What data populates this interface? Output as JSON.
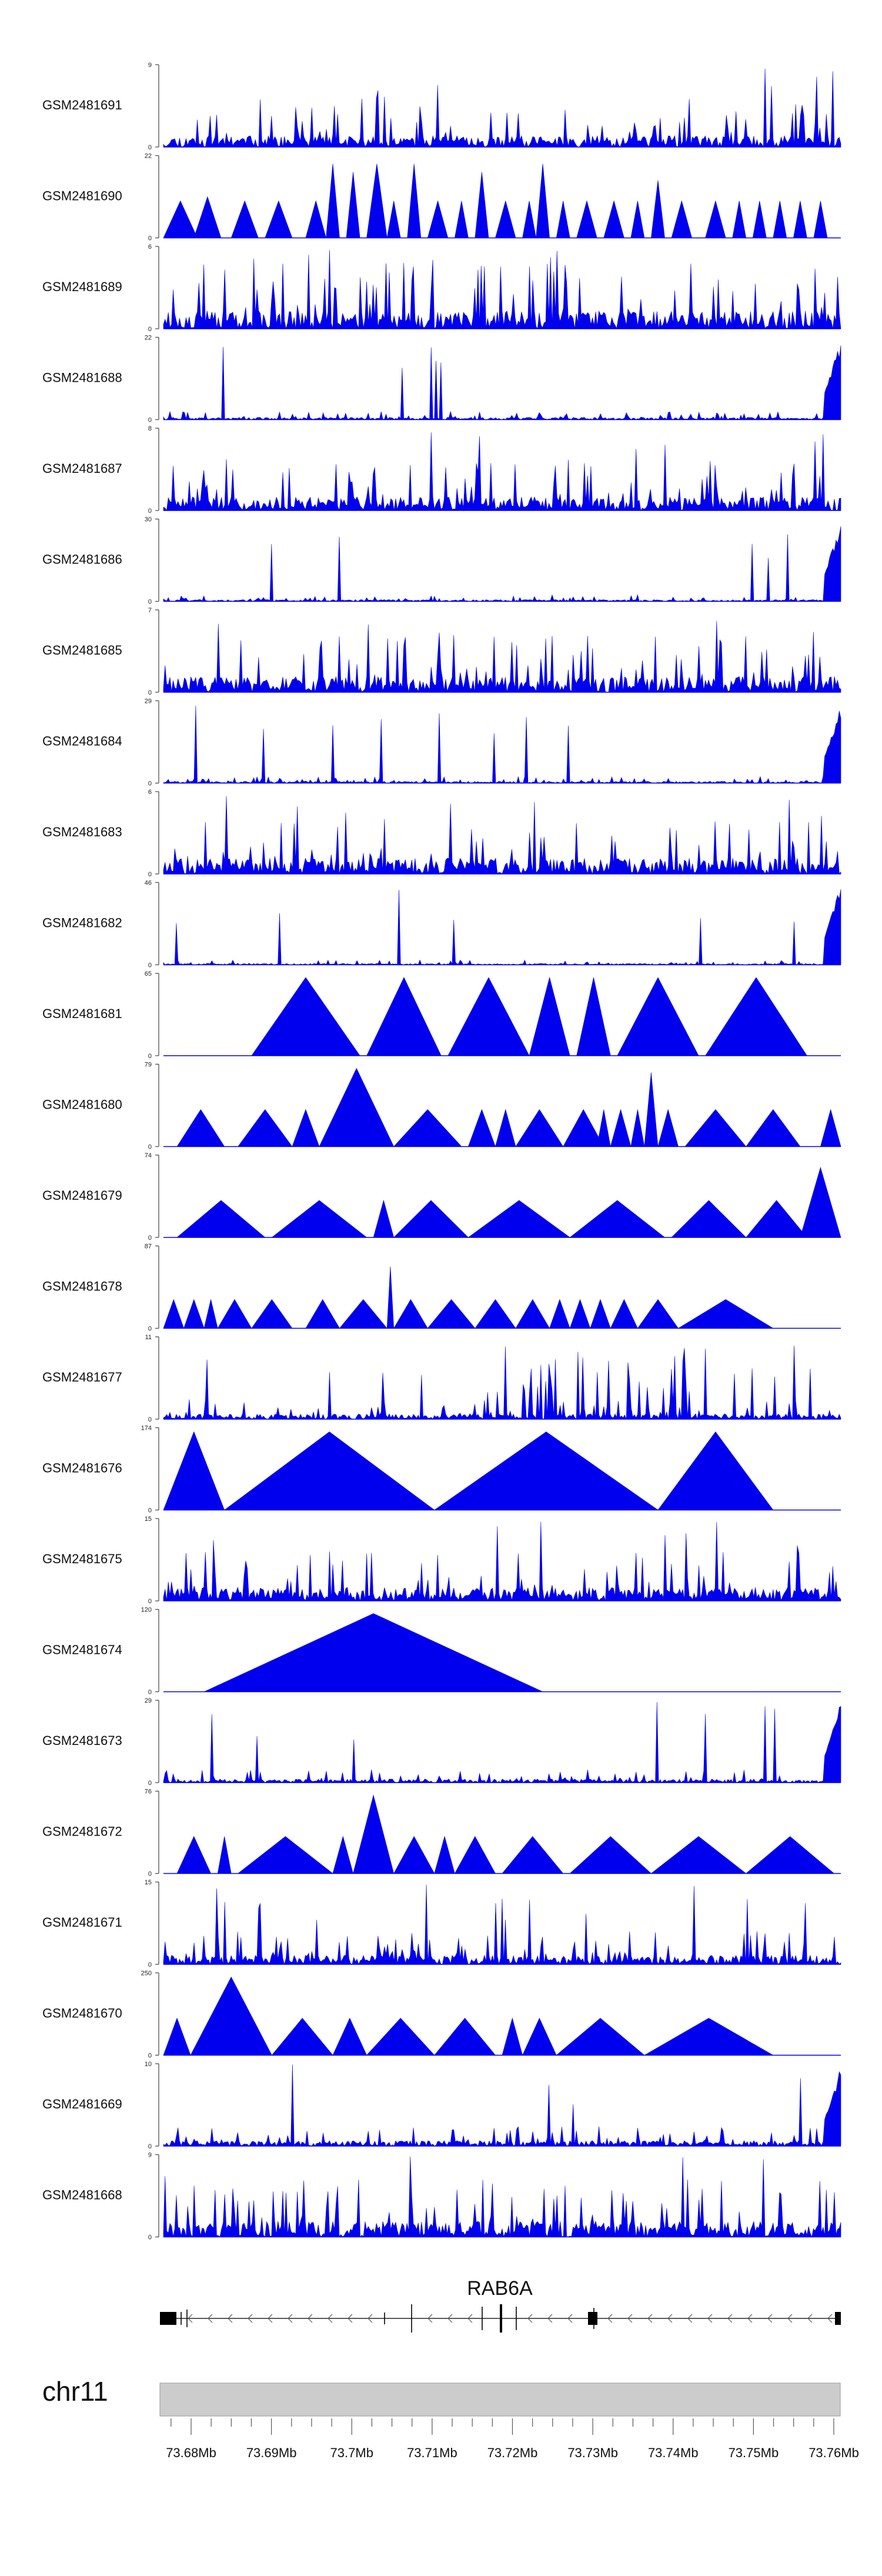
{
  "chart_data": {
    "type": "area",
    "description_axis": "genomic coverage tracks",
    "series_color": "#0000ee",
    "tracks": [
      {
        "label": "GSM2481691",
        "ymax": 9,
        "ymin": 0,
        "pattern": "noise",
        "seed": 11,
        "level": 0.25
      },
      {
        "label": "GSM2481690",
        "ymax": 22,
        "ymin": 0,
        "pattern": "triangles",
        "peaks": [
          [
            0.0,
            0.05,
            0.45
          ],
          [
            0.045,
            0.085,
            0.5
          ],
          [
            0.1,
            0.14,
            0.45
          ],
          [
            0.15,
            0.19,
            0.45
          ],
          [
            0.21,
            0.24,
            0.45
          ],
          [
            0.24,
            0.26,
            0.9
          ],
          [
            0.27,
            0.29,
            0.8
          ],
          [
            0.3,
            0.33,
            0.9
          ],
          [
            0.33,
            0.35,
            0.45
          ],
          [
            0.36,
            0.38,
            0.9
          ],
          [
            0.39,
            0.42,
            0.45
          ],
          [
            0.43,
            0.45,
            0.45
          ],
          [
            0.46,
            0.48,
            0.8
          ],
          [
            0.49,
            0.52,
            0.45
          ],
          [
            0.53,
            0.55,
            0.45
          ],
          [
            0.55,
            0.57,
            0.9
          ],
          [
            0.58,
            0.6,
            0.45
          ],
          [
            0.61,
            0.64,
            0.45
          ],
          [
            0.65,
            0.68,
            0.45
          ],
          [
            0.69,
            0.71,
            0.45
          ],
          [
            0.72,
            0.74,
            0.7
          ],
          [
            0.75,
            0.78,
            0.45
          ],
          [
            0.8,
            0.83,
            0.45
          ],
          [
            0.84,
            0.86,
            0.45
          ],
          [
            0.87,
            0.89,
            0.45
          ],
          [
            0.9,
            0.92,
            0.45
          ],
          [
            0.93,
            0.95,
            0.45
          ],
          [
            0.96,
            0.98,
            0.45
          ]
        ]
      },
      {
        "label": "GSM2481689",
        "ymax": 6,
        "ymin": 0,
        "pattern": "noise",
        "seed": 23,
        "level": 0.4
      },
      {
        "label": "GSM2481688",
        "ymax": 22,
        "ymin": 0,
        "pattern": "noise_endspike",
        "seed": 31,
        "level": 0.05
      },
      {
        "label": "GSM2481687",
        "ymax": 8,
        "ymin": 0,
        "pattern": "noise",
        "seed": 41,
        "level": 0.3
      },
      {
        "label": "GSM2481686",
        "ymax": 30,
        "ymin": 0,
        "pattern": "noise_endspike",
        "seed": 53,
        "level": 0.04
      },
      {
        "label": "GSM2481685",
        "ymax": 7,
        "ymin": 0,
        "pattern": "noise",
        "seed": 61,
        "level": 0.35
      },
      {
        "label": "GSM2481684",
        "ymax": 29,
        "ymin": 0,
        "pattern": "noise_endspike",
        "seed": 71,
        "level": 0.04
      },
      {
        "label": "GSM2481683",
        "ymax": 6,
        "ymin": 0,
        "pattern": "noise",
        "seed": 83,
        "level": 0.35
      },
      {
        "label": "GSM2481682",
        "ymax": 46,
        "ymin": 0,
        "pattern": "noise_endspike",
        "seed": 97,
        "level": 0.03
      },
      {
        "label": "GSM2481681",
        "ymax": 65,
        "ymin": 0,
        "pattern": "triangles",
        "peaks": [
          [
            0.13,
            0.29,
            0.95
          ],
          [
            0.3,
            0.41,
            0.95
          ],
          [
            0.42,
            0.54,
            0.95
          ],
          [
            0.54,
            0.6,
            0.95
          ],
          [
            0.61,
            0.66,
            0.95
          ],
          [
            0.67,
            0.79,
            0.95
          ],
          [
            0.8,
            0.95,
            0.95
          ]
        ]
      },
      {
        "label": "GSM2481680",
        "ymax": 79,
        "ymin": 0,
        "pattern": "triangles",
        "peaks": [
          [
            0.02,
            0.09,
            0.45
          ],
          [
            0.11,
            0.19,
            0.45
          ],
          [
            0.19,
            0.23,
            0.45
          ],
          [
            0.23,
            0.34,
            0.95
          ],
          [
            0.34,
            0.44,
            0.45
          ],
          [
            0.45,
            0.49,
            0.45
          ],
          [
            0.49,
            0.52,
            0.45
          ],
          [
            0.52,
            0.59,
            0.45
          ],
          [
            0.59,
            0.65,
            0.45
          ],
          [
            0.64,
            0.66,
            0.45
          ],
          [
            0.66,
            0.69,
            0.45
          ],
          [
            0.69,
            0.71,
            0.45
          ],
          [
            0.71,
            0.73,
            0.9
          ],
          [
            0.73,
            0.76,
            0.45
          ],
          [
            0.77,
            0.86,
            0.45
          ],
          [
            0.86,
            0.94,
            0.45
          ],
          [
            0.97,
            1.0,
            0.45
          ]
        ]
      },
      {
        "label": "GSM2481679",
        "ymax": 74,
        "ymin": 0,
        "pattern": "triangles",
        "peaks": [
          [
            0.02,
            0.15,
            0.45
          ],
          [
            0.16,
            0.3,
            0.45
          ],
          [
            0.31,
            0.34,
            0.45
          ],
          [
            0.34,
            0.45,
            0.45
          ],
          [
            0.45,
            0.6,
            0.45
          ],
          [
            0.6,
            0.74,
            0.45
          ],
          [
            0.75,
            0.86,
            0.45
          ],
          [
            0.86,
            0.95,
            0.45
          ],
          [
            0.94,
            1.0,
            0.85
          ]
        ]
      },
      {
        "label": "GSM2481678",
        "ymax": 87,
        "ymin": 0,
        "pattern": "triangles",
        "peaks": [
          [
            0.0,
            0.03,
            0.35
          ],
          [
            0.03,
            0.06,
            0.35
          ],
          [
            0.06,
            0.08,
            0.35
          ],
          [
            0.08,
            0.13,
            0.35
          ],
          [
            0.13,
            0.19,
            0.35
          ],
          [
            0.21,
            0.26,
            0.35
          ],
          [
            0.26,
            0.33,
            0.35
          ],
          [
            0.33,
            0.34,
            0.75
          ],
          [
            0.34,
            0.39,
            0.35
          ],
          [
            0.39,
            0.46,
            0.35
          ],
          [
            0.46,
            0.52,
            0.35
          ],
          [
            0.52,
            0.57,
            0.35
          ],
          [
            0.57,
            0.6,
            0.35
          ],
          [
            0.6,
            0.63,
            0.35
          ],
          [
            0.63,
            0.66,
            0.35
          ],
          [
            0.66,
            0.7,
            0.35
          ],
          [
            0.7,
            0.76,
            0.35
          ],
          [
            0.76,
            0.9,
            0.35
          ]
        ]
      },
      {
        "label": "GSM2481677",
        "ymax": 11,
        "ymin": 0,
        "pattern": "noise_mid",
        "seed": 101,
        "level": 0.12
      },
      {
        "label": "GSM2481676",
        "ymax": 174,
        "ymin": 0,
        "pattern": "triangles",
        "peaks": [
          [
            0.0,
            0.09,
            0.95
          ],
          [
            0.09,
            0.4,
            0.95
          ],
          [
            0.4,
            0.73,
            0.95
          ],
          [
            0.73,
            0.9,
            0.95
          ]
        ]
      },
      {
        "label": "GSM2481675",
        "ymax": 15,
        "ymin": 0,
        "pattern": "noise",
        "seed": 113,
        "level": 0.3
      },
      {
        "label": "GSM2481674",
        "ymax": 120,
        "ymin": 0,
        "pattern": "triangles",
        "peaks": [
          [
            0.06,
            0.56,
            0.95
          ]
        ]
      },
      {
        "label": "GSM2481673",
        "ymax": 29,
        "ymin": 0,
        "pattern": "noise_endspike",
        "seed": 127,
        "level": 0.08
      },
      {
        "label": "GSM2481672",
        "ymax": 76,
        "ymin": 0,
        "pattern": "triangles",
        "peaks": [
          [
            0.02,
            0.07,
            0.45
          ],
          [
            0.08,
            0.1,
            0.45
          ],
          [
            0.11,
            0.25,
            0.45
          ],
          [
            0.25,
            0.28,
            0.45
          ],
          [
            0.28,
            0.34,
            0.95
          ],
          [
            0.34,
            0.4,
            0.45
          ],
          [
            0.4,
            0.43,
            0.45
          ],
          [
            0.43,
            0.49,
            0.45
          ],
          [
            0.5,
            0.59,
            0.45
          ],
          [
            0.6,
            0.72,
            0.45
          ],
          [
            0.72,
            0.86,
            0.45
          ],
          [
            0.86,
            0.99,
            0.45
          ]
        ]
      },
      {
        "label": "GSM2481671",
        "ymax": 15,
        "ymin": 0,
        "pattern": "noise",
        "seed": 139,
        "level": 0.2
      },
      {
        "label": "GSM2481670",
        "ymax": 250,
        "ymin": 0,
        "pattern": "triangles",
        "peaks": [
          [
            0.0,
            0.04,
            0.45
          ],
          [
            0.04,
            0.16,
            0.95
          ],
          [
            0.16,
            0.25,
            0.45
          ],
          [
            0.25,
            0.3,
            0.45
          ],
          [
            0.3,
            0.4,
            0.45
          ],
          [
            0.4,
            0.49,
            0.45
          ],
          [
            0.5,
            0.53,
            0.45
          ],
          [
            0.53,
            0.58,
            0.45
          ],
          [
            0.58,
            0.71,
            0.45
          ],
          [
            0.71,
            0.9,
            0.45
          ]
        ]
      },
      {
        "label": "GSM2481669",
        "ymax": 10,
        "ymin": 0,
        "pattern": "noise_endspike",
        "seed": 149,
        "level": 0.12
      },
      {
        "label": "GSM2481668",
        "ymax": 9,
        "ymin": 0,
        "pattern": "noise",
        "seed": 157,
        "level": 0.35
      }
    ],
    "gene": {
      "name": "RAB6A",
      "strand": "-"
    },
    "axis": {
      "chromosome": "chr11",
      "ticks": [
        "73.68Mb",
        "73.69Mb",
        "73.7Mb",
        "73.71Mb",
        "73.72Mb",
        "73.73Mb",
        "73.74Mb",
        "73.75Mb",
        "73.76Mb"
      ]
    }
  }
}
